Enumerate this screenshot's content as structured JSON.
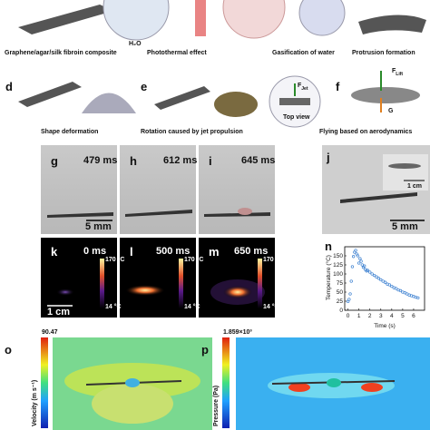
{
  "row1": {
    "captions": [
      "Graphene/agar/silk fibroin composite",
      "Photothermal effect",
      "Gasification of water",
      "Protrusion formation"
    ],
    "h2o": "H₂O"
  },
  "row2": {
    "panels": [
      {
        "letter": "d",
        "caption": "Shape deformation"
      },
      {
        "letter": "e",
        "caption": "Rotation caused by jet propulsion"
      },
      {
        "letter": "f",
        "caption": "Flying based on aerodynamics"
      }
    ],
    "jet": {
      "symbol": "F",
      "sub": "Jet"
    },
    "top_view": "Top view",
    "lift": {
      "symbol": "F",
      "sub": "Lift"
    },
    "gravity": "G"
  },
  "photos": {
    "panels": [
      {
        "letter": "g",
        "time": "479 ms"
      },
      {
        "letter": "h",
        "time": "612 ms"
      },
      {
        "letter": "i",
        "time": "645 ms"
      },
      {
        "letter": "j"
      }
    ],
    "scale_mm": "5 mm",
    "scale_cm": "1 cm"
  },
  "thermal": {
    "panels": [
      {
        "letter": "k",
        "time": "0 ms"
      },
      {
        "letter": "l",
        "time": "500 ms"
      },
      {
        "letter": "m",
        "time": "650 ms"
      }
    ],
    "scale": "1 cm",
    "cbar_max": "170 °C",
    "cbar_min": "14 °C"
  },
  "chart": {
    "type": "scatter",
    "letter": "n",
    "xlabel": "Time (s)",
    "ylabel": "Temperature (°C)",
    "color": "#3a7fd0",
    "x": [
      0,
      0.1,
      0.2,
      0.3,
      0.4,
      0.5,
      0.6,
      0.7,
      0.8,
      0.9,
      1.0,
      1.1,
      1.2,
      1.3,
      1.4,
      1.5,
      1.6,
      1.7,
      1.8,
      2.0,
      2.2,
      2.4,
      2.6,
      2.8,
      3.0,
      3.2,
      3.4,
      3.6,
      3.8,
      4.0,
      4.2,
      4.4,
      4.6,
      4.8,
      5.0,
      5.2,
      5.4,
      5.6,
      5.8,
      6.0,
      6.2,
      6.4
    ],
    "values": [
      24,
      30,
      45,
      80,
      120,
      148,
      160,
      165,
      155,
      150,
      130,
      142,
      135,
      125,
      118,
      122,
      112,
      108,
      110,
      105,
      100,
      96,
      92,
      88,
      84,
      80,
      77,
      72,
      70,
      66,
      62,
      60,
      56,
      54,
      50,
      48,
      45,
      42,
      40,
      38,
      36,
      34
    ],
    "xlim": [
      -0.3,
      7
    ],
    "ylim": [
      0,
      175
    ],
    "xticks": [
      0,
      1,
      2,
      3,
      4,
      5,
      6
    ],
    "yticks": [
      0,
      25,
      50,
      75,
      100,
      125,
      150
    ]
  },
  "simulation": [
    {
      "letter": "o",
      "label": "Velocity (m s⁻¹)",
      "max": "90.47"
    },
    {
      "letter": "p",
      "label": "Pressure (Pa)",
      "max": "1.859×10³"
    }
  ]
}
